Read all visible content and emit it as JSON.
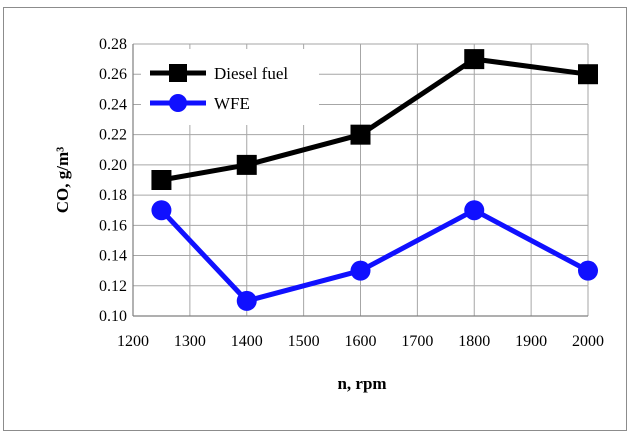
{
  "chart_data": {
    "type": "line",
    "title": "",
    "xlabel": "n, rpm",
    "ylabel": "CO, g/m³",
    "x": [
      1250,
      1400,
      1600,
      1800,
      2000
    ],
    "xlim": [
      1200,
      2000
    ],
    "ylim": [
      0.1,
      0.28
    ],
    "x_ticks": [
      "1200",
      "1300",
      "1400",
      "1500",
      "1600",
      "1700",
      "1800",
      "1900",
      "2000"
    ],
    "y_ticks": [
      "0.10",
      "0.12",
      "0.14",
      "0.16",
      "0.18",
      "0.20",
      "0.22",
      "0.24",
      "0.26",
      "0.28"
    ],
    "grid": true,
    "legend_position": "top-left",
    "series": [
      {
        "name": "Diesel fuel",
        "values": [
          0.19,
          0.2,
          0.22,
          0.27,
          0.26
        ],
        "color": "#000000",
        "marker": "square"
      },
      {
        "name": "WFE",
        "values": [
          0.17,
          0.11,
          0.13,
          0.17,
          0.13
        ],
        "color": "#1010ff",
        "marker": "circle"
      }
    ]
  }
}
